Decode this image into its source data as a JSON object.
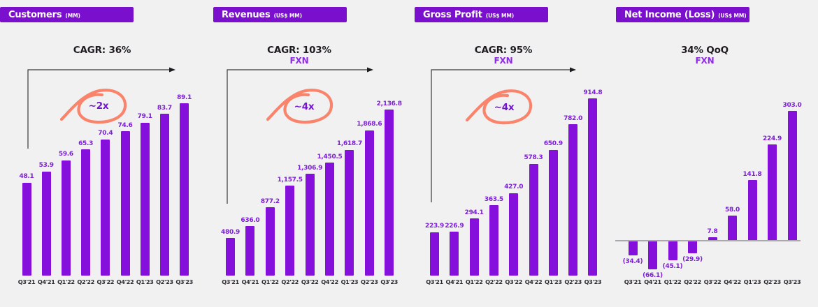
{
  "page": {
    "background": "#F2F1F2"
  },
  "colors": {
    "header_bg": "#7B0FCE",
    "header_text": "#FFFFFF",
    "bar_purple": "#8510DB",
    "value_label_purple": "#7D1ED9",
    "fx_purple": "#8F2BE8",
    "annotation_purple": "#7215CF",
    "swirl_orange": "#F9846B",
    "growth_text": "#1E1C20",
    "axis_label": "#2C2930",
    "baseline_gray": "#ABA8AD",
    "arrow": "#3A3A3A"
  },
  "chart_data": [
    {
      "type": "bar",
      "title": "Customers",
      "unit_label": "(MM)",
      "growth_label": "CAGR: 36%",
      "fx_label": "",
      "annotation": "~2x",
      "has_arrow": true,
      "categories": [
        "Q3'21",
        "Q4'21",
        "Q1'22",
        "Q2'22",
        "Q3'22",
        "Q4'22",
        "Q1'23",
        "Q2'23",
        "Q3'23"
      ],
      "values": [
        48.1,
        53.9,
        59.6,
        65.3,
        70.4,
        74.6,
        79.1,
        83.7,
        89.1
      ],
      "value_labels": [
        "48.1",
        "53.9",
        "59.6",
        "65.3",
        "70.4",
        "74.6",
        "79.1",
        "83.7",
        "89.1"
      ],
      "ylim": [
        0,
        92
      ],
      "grid": false,
      "legend": false
    },
    {
      "type": "bar",
      "title": "Revenues",
      "unit_label": "(US$ MM)",
      "growth_label": "CAGR: 103%",
      "fx_label": "FXN",
      "annotation": "~4x",
      "has_arrow": true,
      "categories": [
        "Q3'21",
        "Q4'21",
        "Q1'22",
        "Q2'22",
        "Q3'22",
        "Q4'22",
        "Q1'23",
        "Q2'23",
        "Q3'23"
      ],
      "values": [
        480.9,
        636.0,
        877.2,
        1157.5,
        1306.9,
        1450.5,
        1618.7,
        1868.6,
        2136.8
      ],
      "value_labels": [
        "480.9",
        "636.0",
        "877.2",
        "1,157.5",
        "1,306.9",
        "1,450.5",
        "1,618.7",
        "1,868.6",
        "2,136.8"
      ],
      "ylim": [
        0,
        2290
      ],
      "grid": false,
      "legend": false
    },
    {
      "type": "bar",
      "title": "Gross Profit",
      "unit_label": "(US$ MM)",
      "growth_label": "CAGR: 95%",
      "fx_label": "FXN",
      "annotation": "~4x",
      "has_arrow": true,
      "categories": [
        "Q3'21",
        "Q4'21",
        "Q1'22",
        "Q2'22",
        "Q3'22",
        "Q4'22",
        "Q1'23",
        "Q2'23",
        "Q3'23"
      ],
      "values": [
        223.9,
        226.9,
        294.1,
        363.5,
        427.0,
        578.3,
        650.9,
        782.0,
        914.8
      ],
      "value_labels": [
        "223.9",
        "226.9",
        "294.1",
        "363.5",
        "427.0",
        "578.3",
        "650.9",
        "782.0",
        "914.8"
      ],
      "ylim": [
        0,
        920
      ],
      "grid": false,
      "legend": false
    },
    {
      "type": "bar",
      "title": "Net Income (Loss)",
      "unit_label": "(US$ MM)",
      "growth_label": "34% QoQ",
      "fx_label": "FXN",
      "annotation": "",
      "has_arrow": false,
      "categories": [
        "Q3'21",
        "Q4'21",
        "Q1'22",
        "Q2'22",
        "Q3'22",
        "Q4'22",
        "Q1'23",
        "Q2'23",
        "Q3'23"
      ],
      "values": [
        -34.4,
        -66.1,
        -45.1,
        -29.9,
        7.8,
        58.0,
        141.8,
        224.9,
        303.0
      ],
      "value_labels": [
        "(34.4)",
        "(66.1)",
        "(45.1)",
        "(29.9)",
        "7.8",
        "58.0",
        "141.8",
        "224.9",
        "303.0"
      ],
      "ylim": [
        -70,
        310
      ],
      "zero_baseline": true,
      "grid": false,
      "legend": false
    }
  ]
}
